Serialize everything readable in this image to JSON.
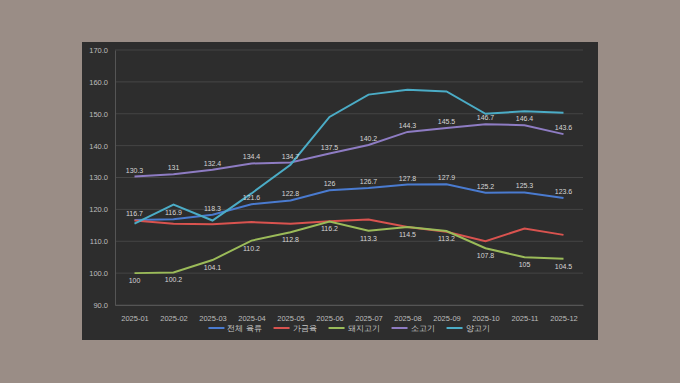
{
  "chart_data": {
    "type": "line",
    "categories": [
      "2025-01",
      "2025-02",
      "2025-03",
      "2025-04",
      "2025-05",
      "2025-06",
      "2025-07",
      "2025-08",
      "2025-09",
      "2025-10",
      "2025-11",
      "2025-12"
    ],
    "series": [
      {
        "name": "전체 육류",
        "color": "#4a7bd0",
        "data_labels": true,
        "values": [
          116.7,
          116.9,
          118.3,
          121.6,
          122.8,
          126.0,
          126.7,
          127.8,
          127.9,
          125.2,
          125.3,
          123.6
        ]
      },
      {
        "name": "가금육",
        "color": "#d9534f",
        "values": [
          116.5,
          115.5,
          115.3,
          116.0,
          115.5,
          116.3,
          116.8,
          114.5,
          113.0,
          110.0,
          114.0,
          112.0
        ]
      },
      {
        "name": "돼지고기",
        "color": "#9bbb59",
        "data_labels": true,
        "values": [
          100.0,
          100.2,
          104.1,
          110.2,
          112.8,
          116.2,
          113.3,
          114.5,
          113.2,
          107.8,
          105.0,
          104.5
        ]
      },
      {
        "name": "소고기",
        "color": "#8e7cc3",
        "data_labels": true,
        "values": [
          130.3,
          131.0,
          132.4,
          134.4,
          134.7,
          137.5,
          140.2,
          144.3,
          145.5,
          146.7,
          146.4,
          143.6
        ]
      },
      {
        "name": "양고기",
        "color": "#4bacc6",
        "values": [
          115.5,
          121.5,
          116.5,
          125.0,
          134.0,
          149.0,
          156.0,
          157.5,
          157.0,
          150.0,
          150.8,
          150.3
        ]
      }
    ],
    "ylim": [
      90,
      170
    ],
    "yticks": [
      {
        "value": 90,
        "label": "90.0"
      },
      {
        "value": 100,
        "label": "100.0"
      },
      {
        "value": 110,
        "label": "110.0"
      },
      {
        "value": 120,
        "label": "120.0"
      },
      {
        "value": 130,
        "label": "130.0"
      },
      {
        "value": 140,
        "label": "140.0"
      },
      {
        "value": 150,
        "label": "150.0"
      },
      {
        "value": 160,
        "label": "160.0"
      },
      {
        "value": 170,
        "label": "170.0"
      }
    ],
    "grid": true,
    "legend": "bottom"
  }
}
